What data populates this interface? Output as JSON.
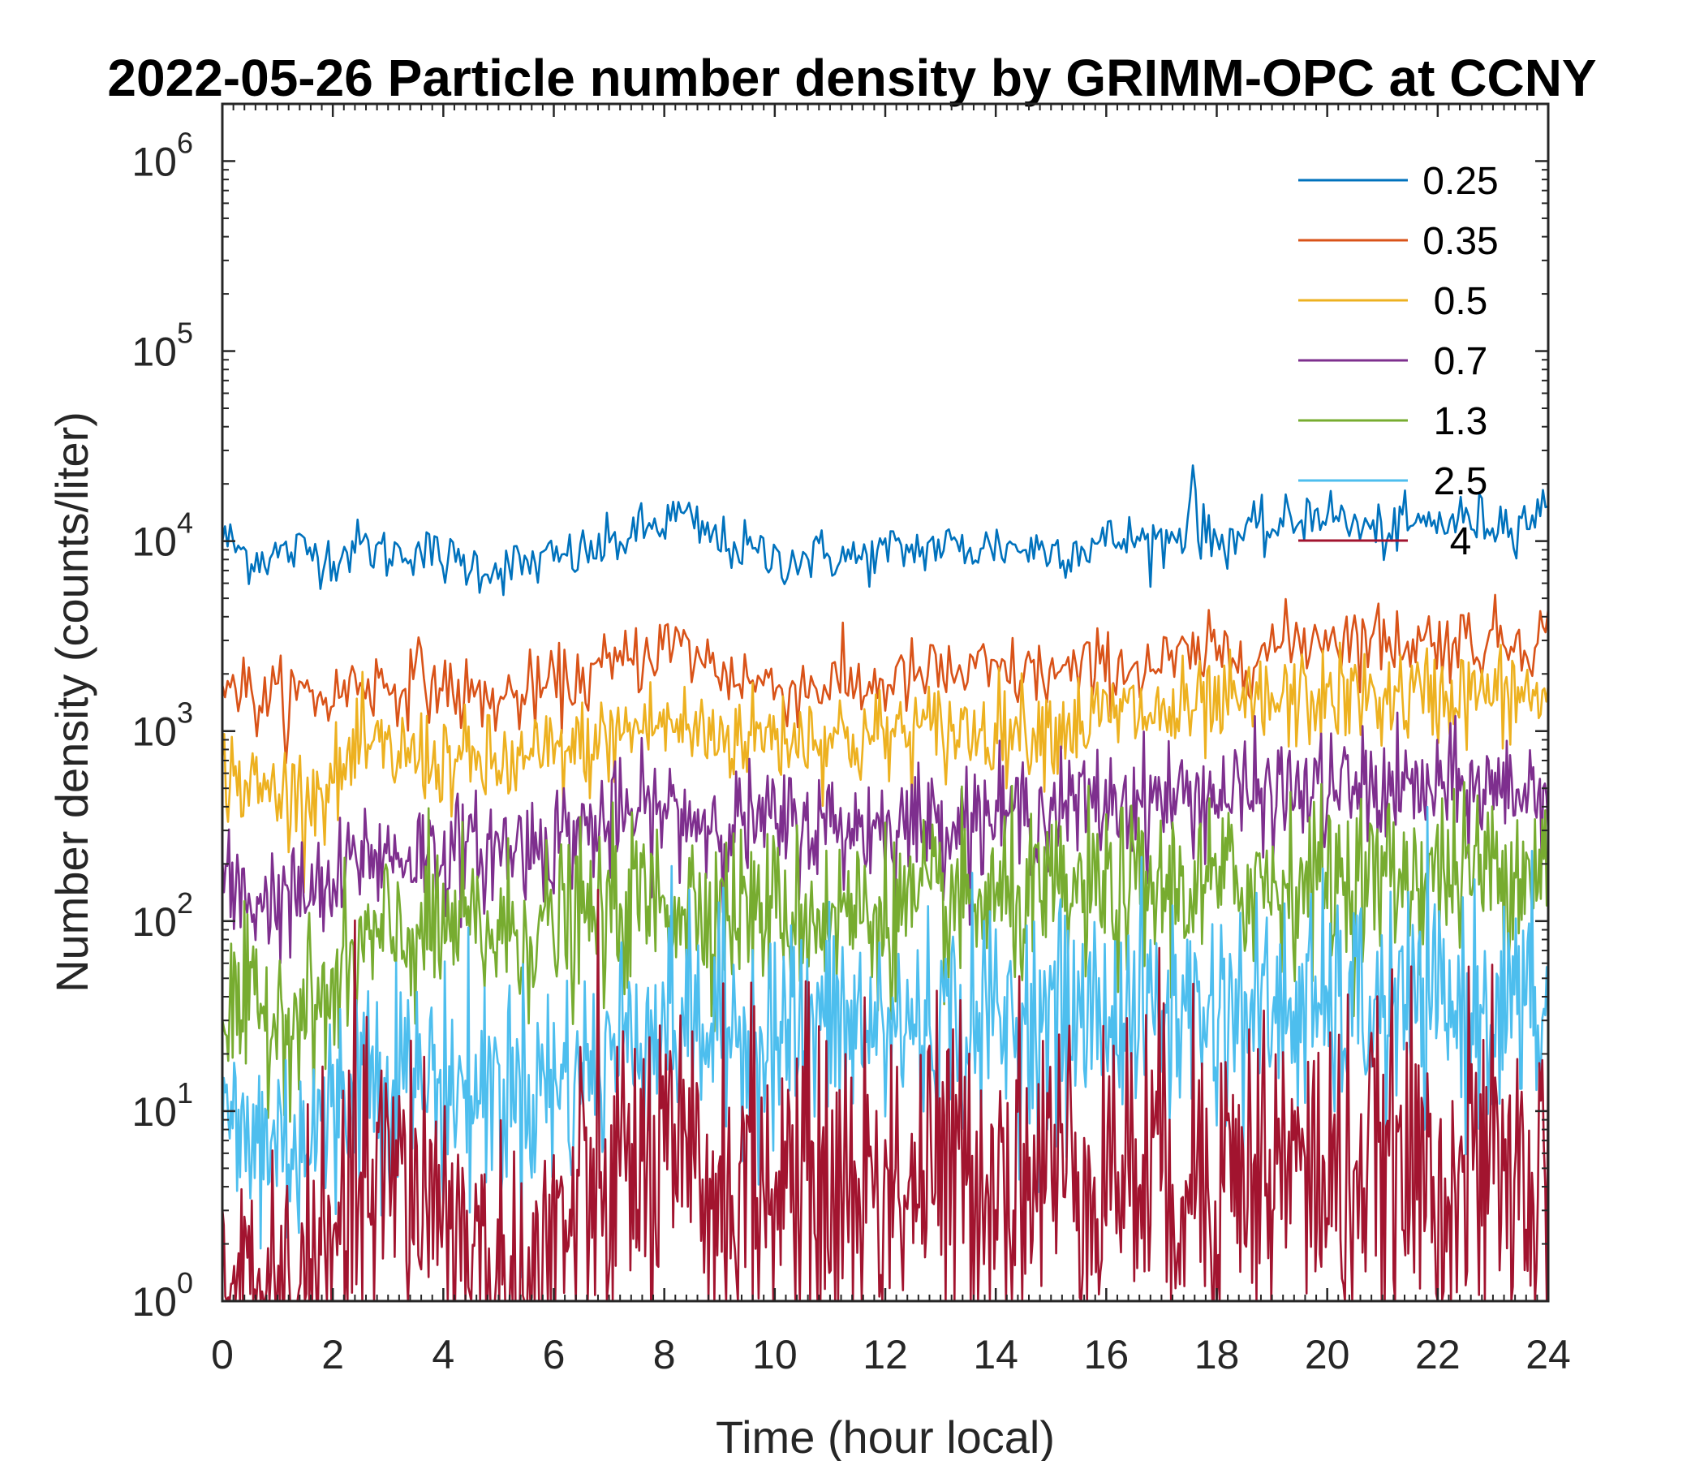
{
  "chart_data": {
    "type": "line",
    "title": "2022-05-26 Particle number density by GRIMM-OPC at CCNY",
    "xlabel": "Time (hour local)",
    "ylabel": "Number density (counts/liter)",
    "xlim": [
      0,
      24
    ],
    "ylim": [
      1,
      2000000
    ],
    "yscale": "log",
    "grid": false,
    "legend_position": "top-right",
    "x_ticks": [
      "0",
      "2",
      "4",
      "6",
      "8",
      "10",
      "12",
      "14",
      "16",
      "18",
      "20",
      "22",
      "24"
    ],
    "y_ticks": [
      {
        "base": "10",
        "exp": "0"
      },
      {
        "base": "10",
        "exp": "1"
      },
      {
        "base": "10",
        "exp": "2"
      },
      {
        "base": "10",
        "exp": "3"
      },
      {
        "base": "10",
        "exp": "4"
      },
      {
        "base": "10",
        "exp": "5"
      },
      {
        "base": "10",
        "exp": "6"
      }
    ],
    "series": [
      {
        "name": "0.25",
        "color": "#0072BD",
        "x": [
          0,
          0.5,
          1,
          1.5,
          2,
          2.5,
          3,
          3.5,
          4,
          4.5,
          5,
          5.5,
          6,
          6.5,
          7,
          7.5,
          8,
          8.3,
          8.5,
          9,
          9.5,
          10,
          10.5,
          11,
          11.5,
          12,
          12.5,
          13,
          13.5,
          14,
          14.5,
          15,
          15.5,
          16,
          16.5,
          17,
          17.45,
          17.55,
          17.65,
          17.8,
          18,
          18.5,
          19,
          19.5,
          19.8,
          20,
          20.5,
          21,
          21.5,
          22,
          22.5,
          23,
          23.5,
          24
        ],
        "y": [
          10500,
          8200,
          8500,
          9000,
          8200,
          9500,
          8500,
          9200,
          8000,
          7500,
          7200,
          7500,
          8000,
          8500,
          9500,
          11000,
          12500,
          14000,
          12000,
          10000,
          9000,
          8000,
          8200,
          8500,
          8000,
          8800,
          9000,
          9500,
          9000,
          9500,
          9200,
          9000,
          9200,
          10000,
          10200,
          10000,
          11000,
          28000,
          12000,
          10500,
          10000,
          11000,
          11500,
          13000,
          15000,
          14000,
          12000,
          11000,
          12000,
          12500,
          13000,
          12500,
          13000,
          14500
        ],
        "noise": 0.07,
        "samples": 500
      },
      {
        "name": "0.35",
        "color": "#D95319",
        "x": [
          0,
          0.5,
          1,
          1.5,
          2,
          2.5,
          3,
          3.5,
          4,
          4.5,
          5,
          5.5,
          6,
          6.5,
          7,
          7.5,
          8,
          8.5,
          9,
          9.5,
          10,
          10.5,
          11,
          11.5,
          12,
          12.5,
          13,
          13.5,
          14,
          14.5,
          15,
          15.5,
          16,
          16.5,
          17,
          17.5,
          18,
          18.5,
          19,
          19.5,
          20,
          20.5,
          21,
          21.5,
          22,
          22.5,
          23,
          23.5,
          24
        ],
        "y": [
          2200,
          1500,
          1450,
          1550,
          1500,
          1900,
          1700,
          1900,
          1700,
          1500,
          1450,
          1550,
          1700,
          1900,
          2100,
          2500,
          2900,
          2600,
          2100,
          1900,
          1700,
          1700,
          1800,
          1700,
          1800,
          1900,
          2000,
          2000,
          2000,
          2000,
          2000,
          2000,
          2200,
          2200,
          2200,
          2400,
          2500,
          2600,
          2700,
          3000,
          3300,
          3100,
          3000,
          3000,
          3000,
          3000,
          3000,
          3100,
          3200
        ],
        "noise": 0.1,
        "samples": 500
      },
      {
        "name": "0.5",
        "color": "#EDB120",
        "x": [
          0,
          0.5,
          1,
          1.5,
          2,
          2.5,
          3,
          3.5,
          4,
          4.5,
          5,
          5.5,
          6,
          6.5,
          7,
          7.5,
          8,
          8.5,
          9,
          9.5,
          10,
          10.5,
          11,
          11.5,
          12,
          12.5,
          13,
          13.5,
          14,
          14.5,
          15,
          15.5,
          16,
          16.5,
          17,
          17.5,
          18,
          18.5,
          19,
          19.5,
          20,
          20.5,
          21,
          21.5,
          22,
          22.5,
          23,
          23.5,
          24
        ],
        "y": [
          650,
          500,
          480,
          470,
          520,
          800,
          750,
          750,
          700,
          680,
          650,
          680,
          750,
          800,
          900,
          1050,
          1100,
          1000,
          950,
          950,
          950,
          950,
          950,
          900,
          950,
          1000,
          1000,
          1000,
          1050,
          1050,
          1050,
          1100,
          1200,
          1250,
          1200,
          1250,
          1300,
          1350,
          1400,
          1450,
          1500,
          1500,
          1500,
          1500,
          1550,
          1550,
          1550,
          1550,
          1500
        ],
        "noise": 0.13,
        "samples": 700
      },
      {
        "name": "0.7",
        "color": "#7E2F8E",
        "x": [
          0,
          0.5,
          1,
          1.5,
          2,
          2.5,
          3,
          3.5,
          4,
          4.5,
          5,
          5.5,
          6,
          6.5,
          7,
          7.5,
          8,
          8.5,
          9,
          9.5,
          10,
          10.5,
          11,
          11.5,
          12,
          12.5,
          13,
          13.5,
          14,
          14.5,
          15,
          15.5,
          16,
          16.5,
          17,
          17.5,
          18,
          18.5,
          19,
          19.5,
          20,
          20.5,
          21,
          21.5,
          22,
          22.5,
          23,
          23.5,
          24
        ],
        "y": [
          150,
          130,
          130,
          135,
          140,
          230,
          220,
          230,
          230,
          230,
          240,
          250,
          270,
          300,
          320,
          370,
          380,
          350,
          330,
          330,
          320,
          320,
          320,
          310,
          320,
          330,
          340,
          350,
          360,
          370,
          380,
          400,
          420,
          430,
          440,
          450,
          460,
          460,
          470,
          480,
          490,
          490,
          490,
          490,
          490,
          490,
          500,
          500,
          490
        ],
        "noise": 0.15,
        "samples": 800
      },
      {
        "name": "1.3",
        "color": "#77AC30",
        "x": [
          0,
          0.5,
          1,
          1.5,
          2,
          2.5,
          3,
          3.5,
          4,
          4.5,
          5,
          5.5,
          6,
          6.5,
          7,
          7.5,
          8,
          8.5,
          9,
          9.5,
          10,
          10.5,
          11,
          11.5,
          12,
          12.5,
          13,
          13.5,
          14,
          14.5,
          15,
          15.5,
          16,
          16.5,
          17,
          17.5,
          18,
          18.5,
          19,
          19.5,
          20,
          20.5,
          21,
          21.5,
          22,
          22.5,
          23,
          23.5,
          24
        ],
        "y": [
          33,
          32,
          33,
          34,
          38,
          70,
          80,
          85,
          90,
          90,
          85,
          90,
          95,
          100,
          110,
          125,
          130,
          125,
          120,
          115,
          110,
          110,
          110,
          110,
          110,
          115,
          120,
          120,
          125,
          125,
          130,
          135,
          140,
          145,
          145,
          150,
          155,
          160,
          160,
          165,
          170,
          170,
          170,
          175,
          180,
          185,
          190,
          195,
          200
        ],
        "noise": 0.22,
        "samples": 900
      },
      {
        "name": "2.5",
        "color": "#4DBEEE",
        "x": [
          0,
          0.5,
          1,
          1.5,
          2,
          2.5,
          3,
          3.5,
          4,
          4.5,
          5,
          5.5,
          6,
          6.5,
          7,
          7.5,
          8,
          8.5,
          9,
          9.5,
          10,
          10.5,
          11,
          11.5,
          12,
          12.5,
          13,
          13.5,
          14,
          14.5,
          15,
          15.5,
          16,
          16.5,
          17,
          17.5,
          18,
          18.5,
          19,
          19.5,
          20,
          20.5,
          21,
          21.5,
          22,
          22.5,
          23,
          23.5,
          24
        ],
        "y": [
          8,
          7,
          7,
          7.5,
          9,
          18,
          16,
          15,
          14,
          13,
          13,
          14,
          14,
          16,
          20,
          28,
          30,
          28,
          27,
          27,
          26,
          27,
          28,
          27,
          27,
          28,
          28,
          29,
          30,
          30,
          30,
          31,
          32,
          33,
          33,
          33,
          33,
          34,
          34,
          34,
          34,
          34,
          34,
          34,
          34,
          34,
          34,
          34,
          33
        ],
        "noise": 0.3,
        "samples": 900
      },
      {
        "name": "4",
        "color": "#A2142F",
        "x": [
          0,
          0.5,
          1,
          1.5,
          2,
          2.5,
          3,
          3.5,
          4,
          4.5,
          5,
          5.5,
          6,
          6.5,
          7,
          7.5,
          8,
          8.5,
          9,
          9.5,
          10,
          10.5,
          11,
          11.5,
          12,
          12.5,
          13,
          13.5,
          14,
          14.5,
          15,
          15.5,
          16,
          16.5,
          17,
          17.5,
          18,
          18.5,
          19,
          19.5,
          20,
          20.5,
          21,
          21.5,
          22,
          22.5,
          23,
          23.5,
          24
        ],
        "y": [
          1,
          1,
          1,
          1,
          1.5,
          4,
          4,
          4,
          3.5,
          1.5,
          1,
          1,
          2,
          3,
          4,
          5,
          4.5,
          4,
          4,
          4,
          4,
          4,
          4,
          4,
          4.5,
          4.5,
          4.5,
          5,
          5,
          5,
          5,
          5,
          5,
          5,
          5,
          5,
          5,
          5,
          5,
          5,
          4.5,
          4.5,
          4.5,
          4.5,
          4.5,
          4.5,
          4.5,
          4,
          4
        ],
        "noise": 0.45,
        "samples": 900
      }
    ]
  }
}
